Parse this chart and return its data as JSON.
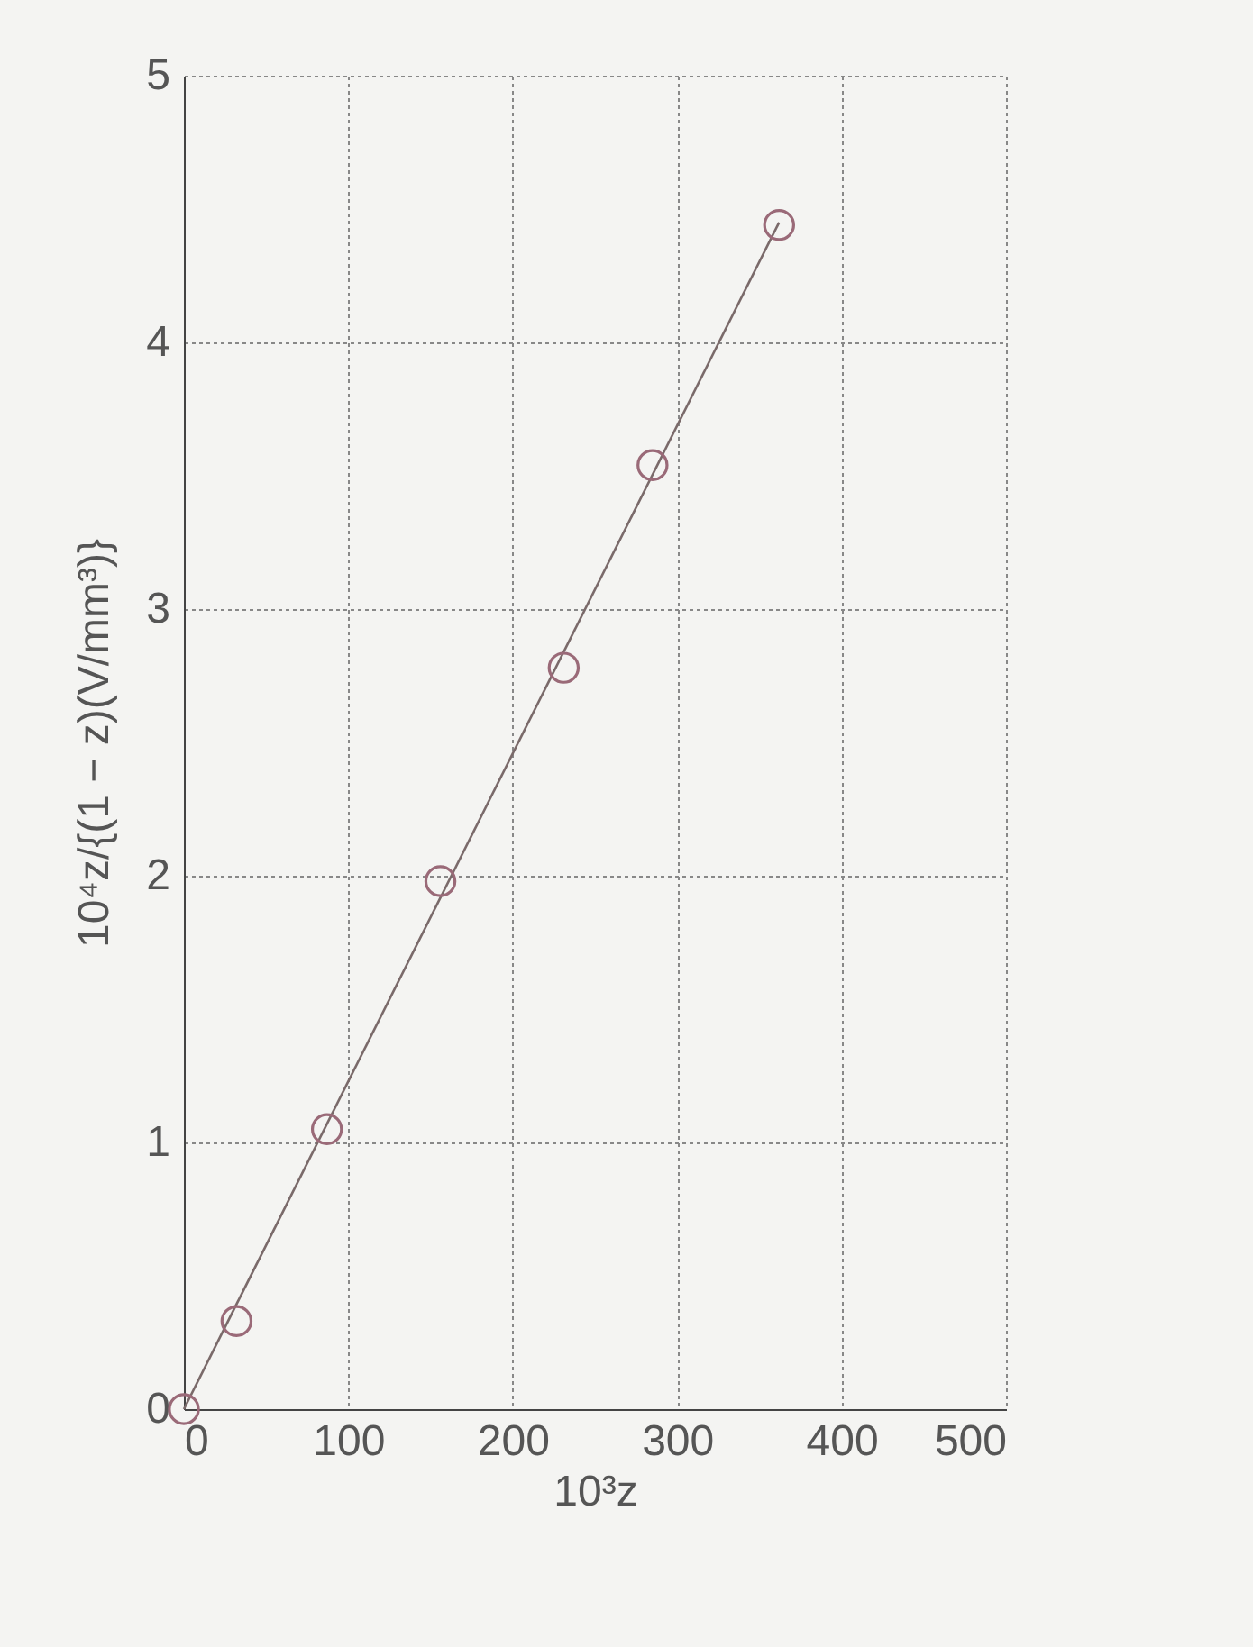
{
  "chart_data": {
    "type": "scatter",
    "xlabel": "10³z",
    "ylabel": "10⁴z/{(1 − z)(V/mm³)}",
    "xlim": [
      0,
      500
    ],
    "ylim": [
      0,
      5
    ],
    "xticks": [
      0,
      100,
      200,
      300,
      400,
      500
    ],
    "yticks": [
      0,
      1,
      2,
      3,
      4,
      5
    ],
    "grid": true,
    "series": [
      {
        "marker": "circle",
        "color": "#9a6a78",
        "x": [
          0,
          32,
          87,
          156,
          231,
          285,
          362
        ],
        "values": [
          0,
          0.33,
          1.05,
          1.98,
          2.78,
          3.54,
          4.44
        ]
      },
      {
        "type": "line",
        "color": "#7a6a6a",
        "x": [
          0,
          362
        ],
        "values": [
          0,
          4.45
        ]
      }
    ]
  }
}
